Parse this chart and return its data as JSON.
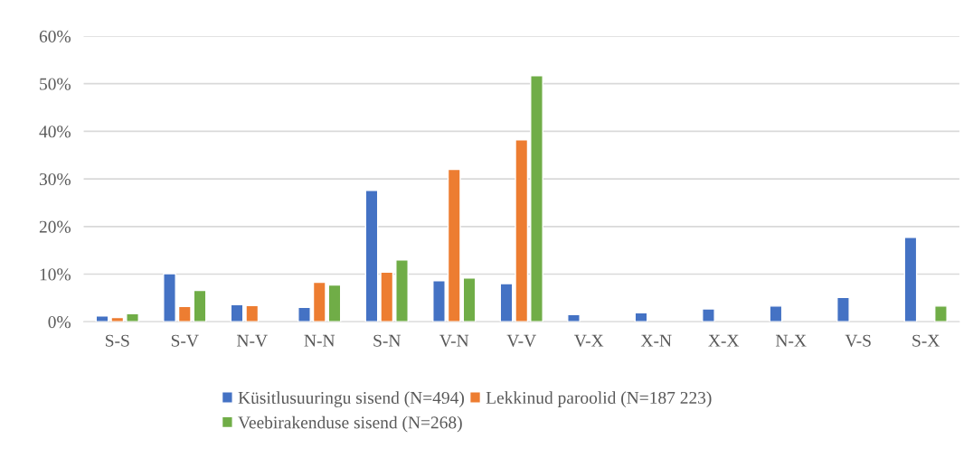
{
  "chart_data": {
    "type": "bar",
    "categories": [
      "S-S",
      "S-V",
      "N-V",
      "N-N",
      "S-N",
      "V-N",
      "V-V",
      "V-X",
      "X-N",
      "X-X",
      "N-X",
      "V-S",
      "S-X"
    ],
    "series": [
      {
        "name": "Küsitlusuuringu sisend (N=494)",
        "color": "#4472c4",
        "values": [
          1.2,
          10.1,
          3.6,
          3.0,
          27.6,
          8.6,
          8.0,
          1.5,
          1.9,
          2.7,
          3.3,
          5.1,
          17.7
        ]
      },
      {
        "name": "Lekkinud paroolid (N=187 223)",
        "color": "#ed7d31",
        "values": [
          0.9,
          3.2,
          3.4,
          8.3,
          10.4,
          32.0,
          38.2,
          null,
          null,
          null,
          null,
          null,
          null
        ]
      },
      {
        "name": "Veebirakenduse sisend (N=268)",
        "color": "#70ad47",
        "values": [
          1.7,
          6.6,
          null,
          7.7,
          13.0,
          9.2,
          51.7,
          null,
          null,
          null,
          null,
          null,
          3.3
        ]
      }
    ],
    "ylim": [
      0,
      60
    ],
    "yticks": [
      {
        "value": 0,
        "label": "0%"
      },
      {
        "value": 10,
        "label": "10%"
      },
      {
        "value": 20,
        "label": "20%"
      },
      {
        "value": 30,
        "label": "30%"
      },
      {
        "value": 40,
        "label": "40%"
      },
      {
        "value": 50,
        "label": "50%"
      },
      {
        "value": 60,
        "label": "60%"
      }
    ],
    "grid": "y",
    "legend": "bottom"
  }
}
